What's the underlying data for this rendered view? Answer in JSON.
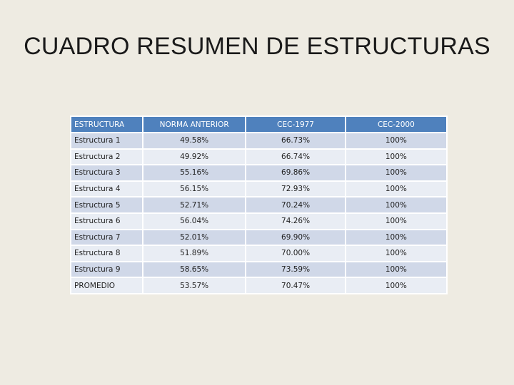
{
  "title": "CUADRO RESUMEN DE ESTRUCTURAS",
  "table": {
    "headers": [
      "ESTRUCTURA",
      "NORMA ANTERIOR",
      "CEC-1977",
      "CEC-2000"
    ],
    "rows": [
      [
        "Estructura 1",
        "49.58%",
        "66.73%",
        "100%"
      ],
      [
        "Estructura 2",
        "49.92%",
        "66.74%",
        "100%"
      ],
      [
        "Estructura 3",
        "55.16%",
        "69.86%",
        "100%"
      ],
      [
        "Estructura 4",
        "56.15%",
        "72.93%",
        "100%"
      ],
      [
        "Estructura 5",
        "52.71%",
        "70.24%",
        "100%"
      ],
      [
        "Estructura 6",
        "56.04%",
        "74.26%",
        "100%"
      ],
      [
        "Estructura 7",
        "52.01%",
        "69.90%",
        "100%"
      ],
      [
        "Estructura 8",
        "51.89%",
        "70.00%",
        "100%"
      ],
      [
        "Estructura 9",
        "58.65%",
        "73.59%",
        "100%"
      ],
      [
        "PROMEDIO",
        "53.57%",
        "70.47%",
        "100%"
      ]
    ]
  },
  "colors": {
    "header_bg": "#4f81bd",
    "row_odd_bg": "#d0d8e8",
    "row_even_bg": "#e9edf4",
    "slide_bg": "#eeebe2"
  }
}
